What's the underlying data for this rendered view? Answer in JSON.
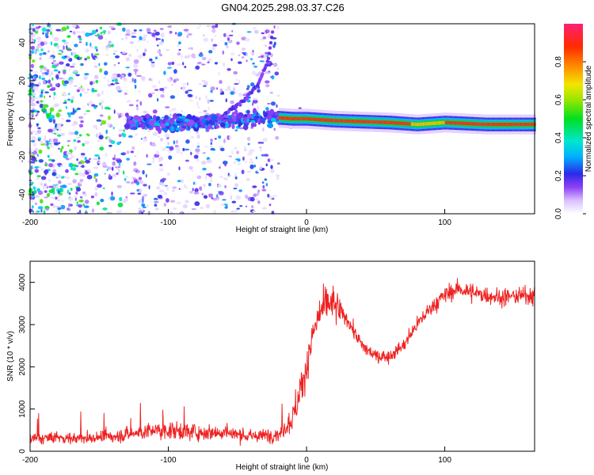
{
  "figure": {
    "title": "GN04.2025.298.03.37.C26"
  },
  "chart_data": [
    {
      "type": "heatmap",
      "title": "GN04.2025.298.03.37.C26",
      "xlabel": "Height of straight line (km)",
      "ylabel": "Frequency (Hz)",
      "xlim": [
        -200,
        165
      ],
      "ylim": [
        -50,
        50
      ],
      "x_ticks": [
        -200,
        -100,
        0,
        100
      ],
      "x_tick_labels": [
        "-200",
        "-100",
        "0",
        "100"
      ],
      "y_ticks": [
        -40,
        -20,
        0,
        20,
        40
      ],
      "y_tick_labels": [
        "-40",
        "-20",
        "0",
        "20",
        "40"
      ],
      "colorbar": {
        "label": "Normalized spectral amplitude",
        "range": [
          0,
          1
        ],
        "ticks": [
          0,
          0.2,
          0.4,
          0.6,
          0.8
        ],
        "tick_labels": [
          "0.0",
          "0.2",
          "0.4",
          "0.6",
          "0.8"
        ]
      },
      "features": [
        {
          "name": "main line",
          "x": [
            -130,
            -100,
            -60,
            -30,
            -10,
            0,
            20,
            60,
            80,
            100,
            130,
            165
          ],
          "freq": [
            -1,
            -3,
            -1,
            1,
            0,
            0,
            -1,
            -2,
            -3,
            -2,
            -3,
            -3
          ]
        },
        {
          "name": "upper branch",
          "x": [
            -60,
            -45,
            -35,
            -28,
            -24
          ],
          "freq": [
            2,
            10,
            18,
            30,
            48
          ]
        }
      ]
    },
    {
      "type": "line",
      "xlabel": "Height of straight line (km)",
      "ylabel": "SNR (10 * v/v)",
      "xlim": [
        -200,
        165
      ],
      "ylim": [
        0,
        4500
      ],
      "x_ticks": [
        -200,
        -100,
        0,
        100
      ],
      "x_tick_labels": [
        "-200",
        "-100",
        "0",
        "100"
      ],
      "y_ticks": [
        0,
        1000,
        2000,
        3000,
        4000
      ],
      "y_tick_labels": [
        "0",
        "1000",
        "2000",
        "3000",
        "4000"
      ],
      "color": "#ee2222",
      "series": [
        {
          "name": "SNR",
          "x": [
            -200,
            -180,
            -160,
            -140,
            -120,
            -100,
            -80,
            -60,
            -40,
            -20,
            -10,
            0,
            5,
            10,
            15,
            20,
            30,
            40,
            50,
            60,
            70,
            80,
            90,
            100,
            110,
            120,
            140,
            165
          ],
          "y": [
            300,
            320,
            300,
            350,
            450,
            500,
            450,
            450,
            350,
            400,
            800,
            2000,
            2800,
            3300,
            3500,
            3450,
            3100,
            2500,
            2250,
            2250,
            2500,
            3000,
            3400,
            3700,
            3850,
            3750,
            3650,
            3700
          ]
        }
      ]
    }
  ]
}
